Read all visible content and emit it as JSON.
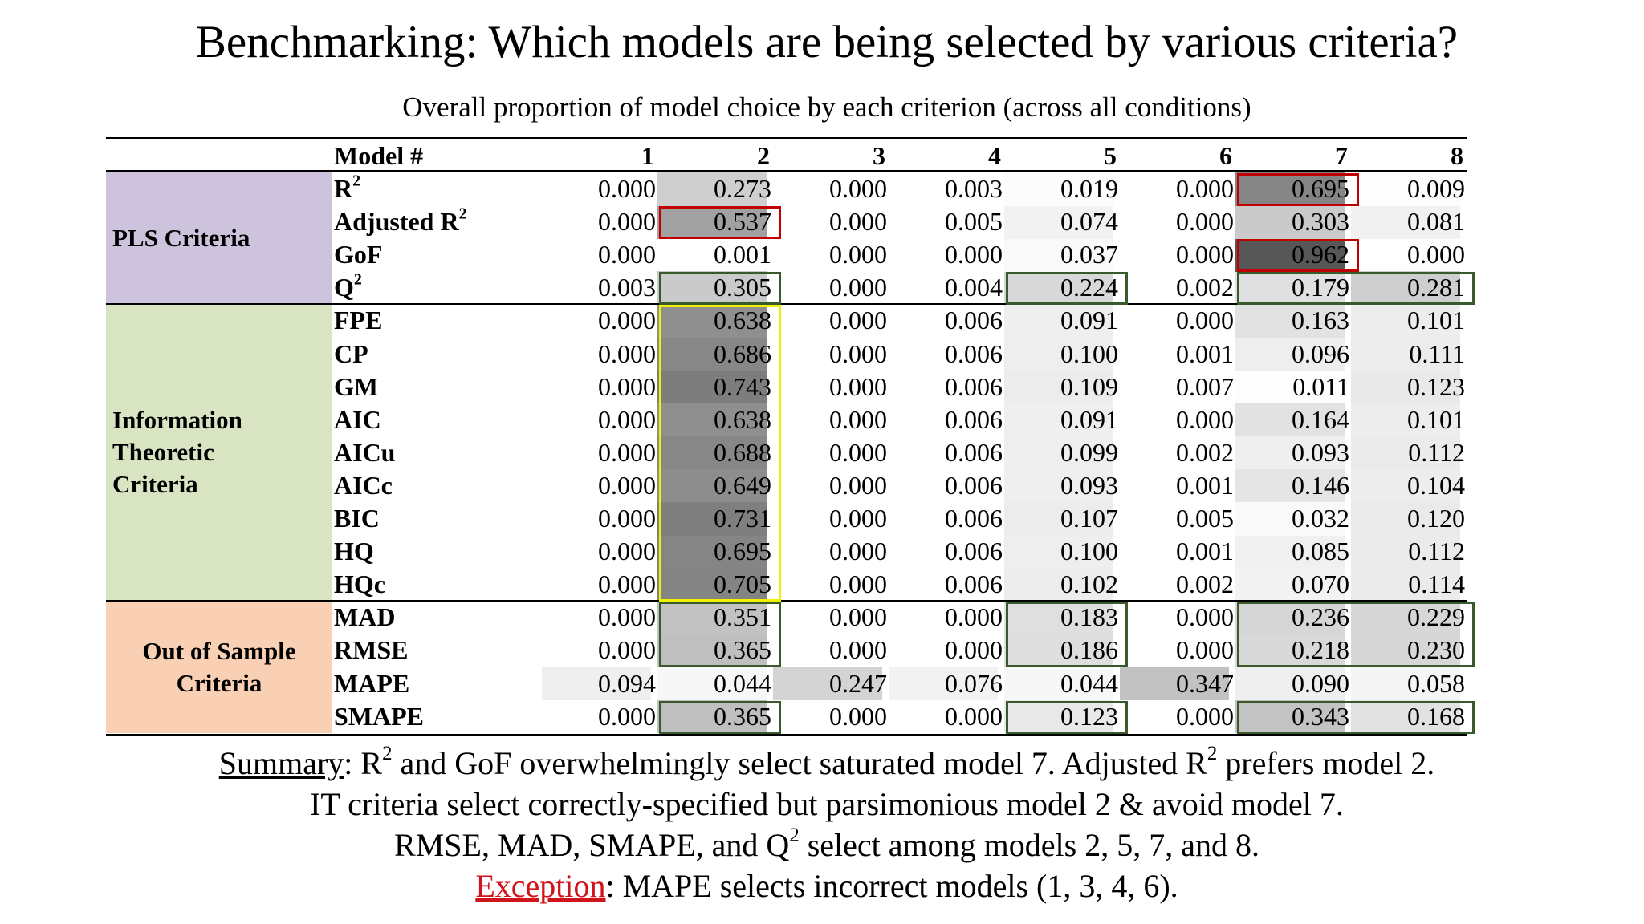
{
  "title": "Benchmarking: Which models are being selected by various criteria?",
  "subtitle": "Overall proportion of model choice by each criterion (across all conditions)",
  "table": {
    "header_label": "Model #",
    "columns": [
      "1",
      "2",
      "3",
      "4",
      "5",
      "6",
      "7",
      "8"
    ],
    "groups": [
      {
        "label_lines": [
          "PLS Criteria"
        ],
        "color": "#cdc3dd",
        "rows": [
          0,
          3
        ]
      },
      {
        "label_lines": [
          "Information",
          "Theoretic",
          "Criteria"
        ],
        "color": "#d9e5c2",
        "rows": [
          4,
          12
        ]
      },
      {
        "label_lines": [
          "Out of Sample",
          "Criteria"
        ],
        "color": "#f9d0b3",
        "rows": [
          13,
          16
        ]
      }
    ],
    "rows": [
      {
        "label": "R",
        "sup": "2",
        "values": [
          "0.000",
          "0.273",
          "0.000",
          "0.003",
          "0.019",
          "0.000",
          "0.695",
          "0.009"
        ]
      },
      {
        "label": "Adjusted R",
        "sup": "2",
        "values": [
          "0.000",
          "0.537",
          "0.000",
          "0.005",
          "0.074",
          "0.000",
          "0.303",
          "0.081"
        ]
      },
      {
        "label": "GoF",
        "sup": "",
        "values": [
          "0.000",
          "0.001",
          "0.000",
          "0.000",
          "0.037",
          "0.000",
          "0.962",
          "0.000"
        ]
      },
      {
        "label": "Q",
        "sup": "2",
        "values": [
          "0.003",
          "0.305",
          "0.000",
          "0.004",
          "0.224",
          "0.002",
          "0.179",
          "0.281"
        ]
      },
      {
        "label": "FPE",
        "sup": "",
        "values": [
          "0.000",
          "0.638",
          "0.000",
          "0.006",
          "0.091",
          "0.000",
          "0.163",
          "0.101"
        ]
      },
      {
        "label": "CP",
        "sup": "",
        "values": [
          "0.000",
          "0.686",
          "0.000",
          "0.006",
          "0.100",
          "0.001",
          "0.096",
          "0.111"
        ]
      },
      {
        "label": "GM",
        "sup": "",
        "values": [
          "0.000",
          "0.743",
          "0.000",
          "0.006",
          "0.109",
          "0.007",
          "0.011",
          "0.123"
        ]
      },
      {
        "label": "AIC",
        "sup": "",
        "values": [
          "0.000",
          "0.638",
          "0.000",
          "0.006",
          "0.091",
          "0.000",
          "0.164",
          "0.101"
        ]
      },
      {
        "label": "AICu",
        "sup": "",
        "values": [
          "0.000",
          "0.688",
          "0.000",
          "0.006",
          "0.099",
          "0.002",
          "0.093",
          "0.112"
        ]
      },
      {
        "label": "AICc",
        "sup": "",
        "values": [
          "0.000",
          "0.649",
          "0.000",
          "0.006",
          "0.093",
          "0.001",
          "0.146",
          "0.104"
        ]
      },
      {
        "label": "BIC",
        "sup": "",
        "values": [
          "0.000",
          "0.731",
          "0.000",
          "0.006",
          "0.107",
          "0.005",
          "0.032",
          "0.120"
        ]
      },
      {
        "label": "HQ",
        "sup": "",
        "values": [
          "0.000",
          "0.695",
          "0.000",
          "0.006",
          "0.100",
          "0.001",
          "0.085",
          "0.112"
        ]
      },
      {
        "label": "HQc",
        "sup": "",
        "values": [
          "0.000",
          "0.705",
          "0.000",
          "0.006",
          "0.102",
          "0.002",
          "0.070",
          "0.114"
        ]
      },
      {
        "label": "MAD",
        "sup": "",
        "values": [
          "0.000",
          "0.351",
          "0.000",
          "0.000",
          "0.183",
          "0.000",
          "0.236",
          "0.229"
        ]
      },
      {
        "label": "RMSE",
        "sup": "",
        "values": [
          "0.000",
          "0.365",
          "0.000",
          "0.000",
          "0.186",
          "0.000",
          "0.218",
          "0.230"
        ]
      },
      {
        "label": "MAPE",
        "sup": "",
        "values": [
          "0.094",
          "0.044",
          "0.247",
          "0.076",
          "0.044",
          "0.347",
          "0.090",
          "0.058"
        ]
      },
      {
        "label": "SMAPE",
        "sup": "",
        "values": [
          "0.000",
          "0.365",
          "0.000",
          "0.000",
          "0.123",
          "0.000",
          "0.343",
          "0.168"
        ]
      }
    ]
  },
  "highlights": {
    "red_color": "#c00000",
    "green_color": "#3b5a2c",
    "yellow_color": "#f0f000"
  },
  "summary": {
    "line1": {
      "lead": "Summary",
      "a": ": R",
      "sup1": "2",
      "b": " and GoF overwhelmingly select saturated model 7. Adjusted R",
      "sup2": "2",
      "c": " prefers model 2."
    },
    "line2": "IT criteria select correctly-specified but parsimonious model 2 & avoid model 7.",
    "line3": {
      "a": "RMSE, MAD, SMAPE, and Q",
      "sup": "2",
      "b": " select among models 2, 5, 7, and 8."
    },
    "line4": {
      "lead": "Exception",
      "rest": ": MAPE selects incorrect models (1, 3, 4, 6)."
    }
  }
}
